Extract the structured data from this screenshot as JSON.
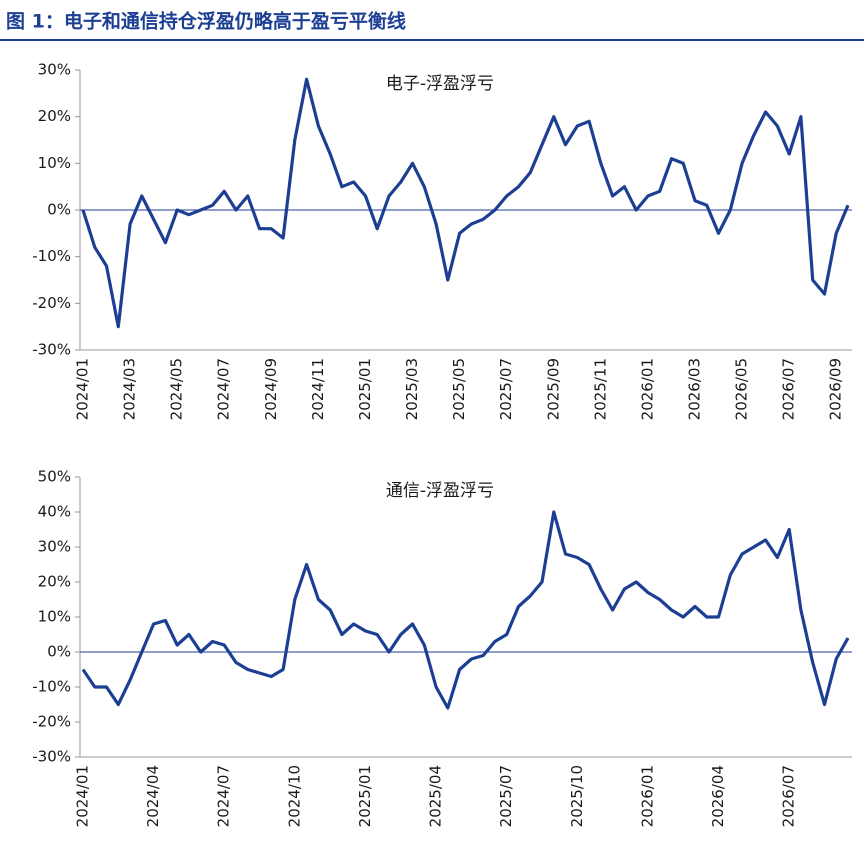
{
  "header": {
    "title": "图 1：电子和通信持仓浮盈仍略高于盈亏平衡线"
  },
  "chart_data": [
    {
      "type": "line",
      "title": "电子-浮盈浮亏",
      "color": "#1c3f94",
      "categories": [
        "2024/01",
        null,
        null,
        null,
        "2024/03",
        null,
        null,
        null,
        "2024/05",
        null,
        null,
        null,
        "2024/07",
        null,
        null,
        null,
        "2024/09",
        null,
        null,
        null,
        "2024/11",
        null,
        null,
        null,
        "2025/01",
        null,
        null,
        null,
        "2025/03",
        null,
        null,
        null,
        "2025/05",
        null,
        null,
        null,
        "2025/07",
        null,
        null,
        null,
        "2025/09",
        null,
        null,
        null,
        "2025/11",
        null,
        null,
        null,
        "2026/01",
        null,
        null,
        null,
        "2026/03",
        null,
        null,
        null,
        "2026/05",
        null,
        null,
        null,
        "2026/07",
        null,
        null,
        null,
        "2026/09",
        null
      ],
      "values": [
        0,
        -8,
        -12,
        -25,
        -3,
        3,
        -2,
        -7,
        0,
        -1,
        0,
        1,
        4,
        0,
        3,
        -4,
        -4,
        -6,
        15,
        28,
        18,
        12,
        5,
        6,
        3,
        -4,
        3,
        6,
        10,
        5,
        -3,
        -15,
        -5,
        -3,
        -2,
        0,
        3,
        5,
        8,
        14,
        20,
        14,
        18,
        19,
        10,
        3,
        5,
        0,
        3,
        4,
        11,
        10,
        2,
        1,
        -5,
        0,
        10,
        16,
        21,
        18,
        12,
        20,
        -15,
        -18,
        -5,
        1
      ],
      "ylim": [
        -30,
        30
      ],
      "yticks": [
        {
          "value": -30,
          "label": "-30%"
        },
        {
          "value": -20,
          "label": "-20%"
        },
        {
          "value": -10,
          "label": "-10%"
        },
        {
          "value": 0,
          "label": "0%"
        },
        {
          "value": 10,
          "label": "10%"
        },
        {
          "value": 20,
          "label": "20%"
        },
        {
          "value": 30,
          "label": "30%"
        }
      ]
    },
    {
      "type": "line",
      "title": "通信-浮盈浮亏",
      "color": "#1c3f94",
      "categories": [
        "2024/01",
        null,
        null,
        null,
        null,
        null,
        "2024/04",
        null,
        null,
        null,
        null,
        null,
        "2024/07",
        null,
        null,
        null,
        null,
        null,
        "2024/10",
        null,
        null,
        null,
        null,
        null,
        "2025/01",
        null,
        null,
        null,
        null,
        null,
        "2025/04",
        null,
        null,
        null,
        null,
        null,
        "2025/07",
        null,
        null,
        null,
        null,
        null,
        "2025/10",
        null,
        null,
        null,
        null,
        null,
        "2026/01",
        null,
        null,
        null,
        null,
        null,
        "2026/04",
        null,
        null,
        null,
        null,
        null,
        "2026/07",
        null,
        null,
        null,
        null,
        null
      ],
      "values": [
        -5,
        -10,
        -10,
        -15,
        -8,
        0,
        8,
        9,
        2,
        5,
        0,
        3,
        2,
        -3,
        -5,
        -6,
        -7,
        -5,
        15,
        25,
        15,
        12,
        5,
        8,
        6,
        5,
        0,
        5,
        8,
        2,
        -10,
        -16,
        -5,
        -2,
        -1,
        3,
        5,
        13,
        16,
        20,
        40,
        28,
        27,
        25,
        18,
        12,
        18,
        20,
        17,
        15,
        12,
        10,
        13,
        10,
        10,
        22,
        28,
        30,
        32,
        27,
        35,
        12,
        -3,
        -15,
        -2,
        4
      ],
      "ylim": [
        -30,
        50
      ],
      "yticks": [
        {
          "value": -30,
          "label": "-30%"
        },
        {
          "value": -20,
          "label": "-20%"
        },
        {
          "value": -10,
          "label": "-10%"
        },
        {
          "value": 0,
          "label": "0%"
        },
        {
          "value": 10,
          "label": "10%"
        },
        {
          "value": 20,
          "label": "20%"
        },
        {
          "value": 30,
          "label": "30%"
        },
        {
          "value": 40,
          "label": "40%"
        },
        {
          "value": 50,
          "label": "50%"
        }
      ]
    }
  ]
}
